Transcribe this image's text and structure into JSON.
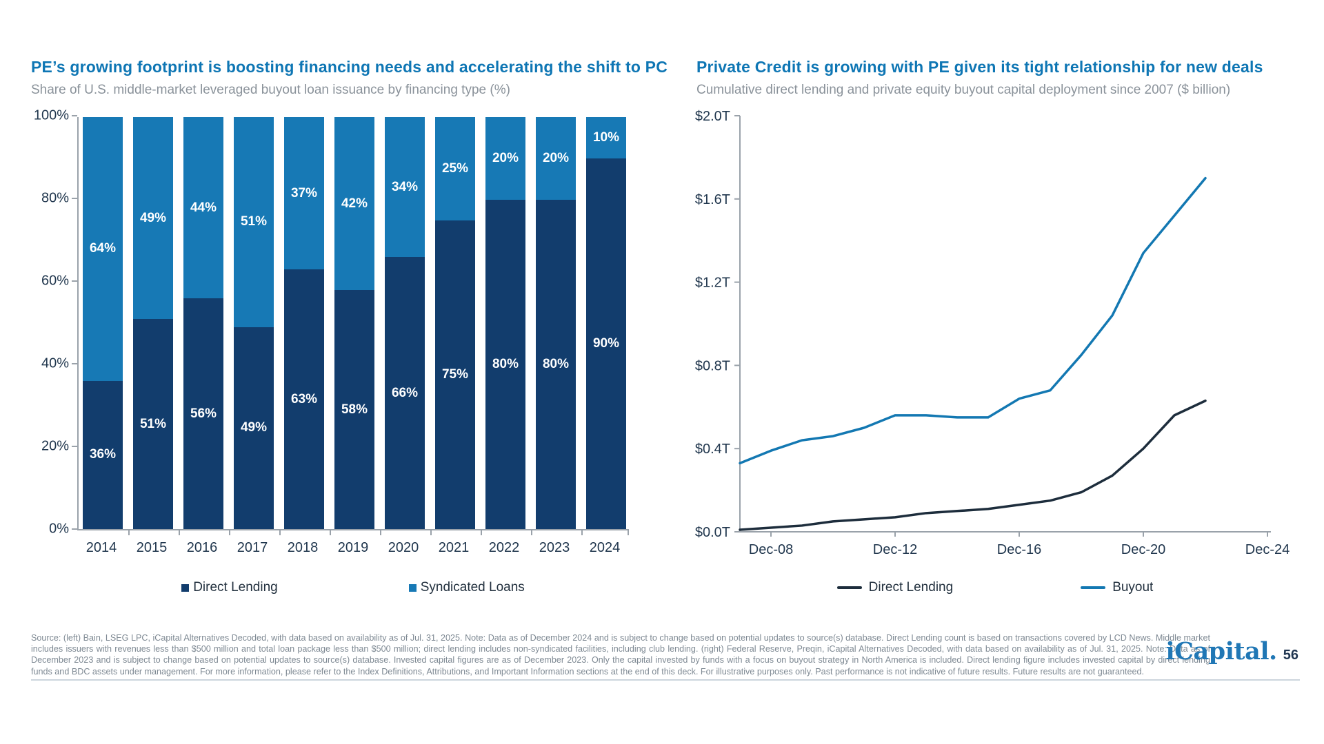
{
  "chart_data": [
    {
      "type": "bar",
      "stacked": true,
      "title": "PE’s growing footprint is boosting financing needs and accelerating the shift to PC",
      "subtitle": "Share of U.S. middle-market leveraged buyout loan issuance by financing type (%)",
      "categories": [
        "2014",
        "2015",
        "2016",
        "2017",
        "2018",
        "2019",
        "2020",
        "2021",
        "2022",
        "2023",
        "2024"
      ],
      "series": [
        {
          "name": "Direct Lending",
          "color": "#123d6d",
          "values": [
            36,
            51,
            56,
            49,
            63,
            58,
            66,
            75,
            80,
            80,
            90
          ]
        },
        {
          "name": "Syndicated Loans",
          "color": "#1779b5",
          "values": [
            64,
            49,
            44,
            51,
            37,
            42,
            34,
            25,
            20,
            20,
            10
          ]
        }
      ],
      "y_ticks": [
        "0%",
        "20%",
        "40%",
        "60%",
        "80%",
        "100%"
      ],
      "ylim": [
        0,
        100
      ],
      "value_suffix": "%",
      "grid": false,
      "legend_position": "bottom"
    },
    {
      "type": "line",
      "title": "Private Credit is growing with PE given its tight relationship for new deals",
      "subtitle": "Cumulative direct lending and private equity buyout capital deployment since 2007 ($ billion)",
      "x": [
        2007,
        2008,
        2009,
        2010,
        2011,
        2012,
        2013,
        2014,
        2015,
        2016,
        2017,
        2018,
        2019,
        2020,
        2021,
        2022
      ],
      "series": [
        {
          "name": "Direct Lending",
          "color": "#1d2d3c",
          "values": [
            0.01,
            0.02,
            0.03,
            0.05,
            0.06,
            0.07,
            0.09,
            0.1,
            0.11,
            0.13,
            0.15,
            0.19,
            0.27,
            0.4,
            0.56,
            0.63
          ]
        },
        {
          "name": "Buyout",
          "color": "#1378b2",
          "values": [
            0.33,
            0.39,
            0.44,
            0.46,
            0.5,
            0.56,
            0.56,
            0.55,
            0.55,
            0.64,
            0.68,
            0.85,
            1.04,
            1.34,
            1.52,
            1.7
          ]
        }
      ],
      "x_ticks": [
        "Dec-08",
        "Dec-12",
        "Dec-16",
        "Dec-20",
        "Dec-24"
      ],
      "x_tick_years": [
        2008,
        2012,
        2016,
        2020,
        2024
      ],
      "y_ticks": [
        "$0.0T",
        "$0.4T",
        "$0.8T",
        "$1.2T",
        "$1.6T",
        "$2.0T"
      ],
      "ylim": [
        0,
        2.0
      ],
      "grid": false,
      "legend_position": "bottom"
    }
  ],
  "footer": {
    "source_text": "Source: (left) Bain, LSEG LPC, iCapital Alternatives Decoded, with data based on availability as of Jul. 31, 2025. Note: Data as of December 2024 and is subject to change based on potential updates to source(s) database. Direct Lending count is based on transactions covered by LCD News. Middle market includes issuers with revenues less than $500 million and total loan package less than $500 million; direct lending includes non-syndicated facilities, including club lending. (right) Federal Reserve, Preqin, iCapital Alternatives Decoded, with data based on availability as of Jul. 31, 2025. Note: Data as of December 2023 and is subject to change based on potential updates to source(s) database. Invested capital figures are as of December 2023. Only the capital invested by funds with a focus on buyout strategy in North America is included. Direct lending figure includes invested capital by direct lending funds and BDC assets under management. For more information, please refer to the Index Definitions, Attributions, and Important Information sections at the end of this deck. For illustrative purposes only. Past performance is not indicative of future results. Future results are not guaranteed.",
    "brand": "iCapital.",
    "page_number": "56"
  },
  "colors": {
    "title_blue": "#0e76b4",
    "subtitle_gray": "#8a929a",
    "axis_text": "#21374e",
    "axis_line": "#9aa2aa",
    "bar_dark_navy": "#123d6d",
    "bar_light_blue": "#1779b5",
    "line_dark": "#1d2d3c",
    "line_blue": "#1378b2",
    "footer_gray": "#7e8993",
    "logo_blue": "#2077b5"
  }
}
